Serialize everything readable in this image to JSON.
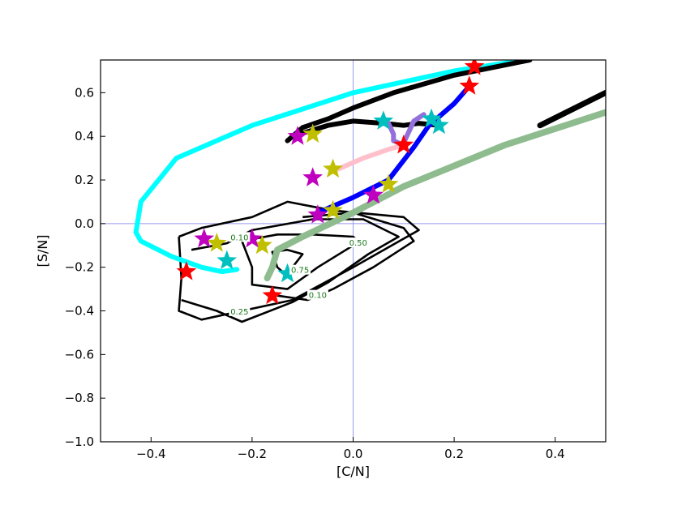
{
  "chart_data": {
    "type": "line",
    "xlabel": "[C/N]",
    "ylabel": "[S/N]",
    "xlim": [
      -0.5,
      0.5
    ],
    "ylim": [
      -1.0,
      0.75
    ],
    "x_ticks": [
      {
        "value": -0.4,
        "label": "−0.4"
      },
      {
        "value": -0.2,
        "label": "−0.2"
      },
      {
        "value": 0.0,
        "label": "0.0"
      },
      {
        "value": 0.2,
        "label": "0.2"
      },
      {
        "value": 0.4,
        "label": "0.4"
      }
    ],
    "y_ticks": [
      {
        "value": -1.0,
        "label": "−1.0"
      },
      {
        "value": -0.8,
        "label": "−0.8"
      },
      {
        "value": -0.6,
        "label": "−0.6"
      },
      {
        "value": -0.4,
        "label": "−0.4"
      },
      {
        "value": -0.2,
        "label": "−0.2"
      },
      {
        "value": 0.0,
        "label": "0.0"
      },
      {
        "value": 0.2,
        "label": "0.2"
      },
      {
        "value": 0.4,
        "label": "0.4"
      },
      {
        "value": 0.6,
        "label": "0.6"
      }
    ],
    "reference_lines": {
      "x": 0.0,
      "y": 0.0,
      "color": "#9999ee"
    },
    "contours": [
      {
        "label": "0.10",
        "label_at": [
          -0.225,
          -0.065
        ],
        "points": [
          [
            -0.345,
            -0.06
          ],
          [
            -0.3,
            -0.02
          ],
          [
            -0.2,
            0.03
          ],
          [
            -0.13,
            0.1
          ],
          [
            -0.04,
            0.06
          ],
          [
            0.1,
            0.03
          ],
          [
            0.13,
            -0.03
          ],
          [
            0.0,
            -0.2
          ],
          [
            -0.12,
            -0.35
          ],
          [
            -0.22,
            -0.4
          ],
          [
            -0.3,
            -0.44
          ],
          [
            -0.345,
            -0.4
          ],
          [
            -0.34,
            -0.25
          ],
          [
            -0.345,
            -0.06
          ]
        ]
      },
      {
        "label": "0.10",
        "label_at": [
          -0.07,
          -0.33
        ],
        "points": [
          [
            -0.15,
            -0.33
          ],
          [
            -0.09,
            -0.35
          ],
          [
            -0.04,
            -0.3
          ],
          [
            0.04,
            -0.2
          ],
          [
            0.12,
            -0.08
          ],
          [
            0.1,
            -0.02
          ],
          [
            0.0,
            0.05
          ],
          [
            -0.1,
            0.03
          ]
        ]
      },
      {
        "label": "0.25",
        "label_at": [
          -0.225,
          -0.405
        ],
        "points": [
          [
            -0.34,
            -0.35
          ],
          [
            -0.27,
            -0.4
          ],
          [
            -0.22,
            -0.45
          ],
          [
            -0.12,
            -0.36
          ],
          [
            -0.05,
            -0.27
          ],
          [
            0.03,
            -0.14
          ],
          [
            0.09,
            -0.06
          ],
          [
            0.02,
            0.02
          ],
          [
            -0.08,
            0.02
          ],
          [
            -0.2,
            -0.03
          ],
          [
            -0.25,
            -0.09
          ],
          [
            -0.32,
            -0.12
          ]
        ]
      },
      {
        "label": "0.50",
        "label_at": [
          0.01,
          -0.09
        ],
        "points": [
          [
            0.0,
            -0.1
          ],
          [
            -0.07,
            -0.2
          ],
          [
            -0.13,
            -0.3
          ],
          [
            -0.2,
            -0.28
          ],
          [
            -0.2,
            -0.2
          ],
          [
            -0.22,
            -0.08
          ],
          [
            -0.15,
            -0.05
          ],
          [
            -0.08,
            -0.05
          ],
          [
            0.0,
            -0.06
          ],
          [
            0.02,
            -0.1
          ]
        ]
      },
      {
        "label": "0.75",
        "label_at": [
          -0.105,
          -0.215
        ],
        "points": [
          [
            -0.13,
            -0.24
          ],
          [
            -0.15,
            -0.2
          ],
          [
            -0.16,
            -0.13
          ],
          [
            -0.13,
            -0.12
          ],
          [
            -0.1,
            -0.14
          ],
          [
            -0.12,
            -0.2
          ]
        ]
      }
    ],
    "series": [
      {
        "color": "#00ffff",
        "width": 6,
        "points": [
          [
            0.34,
            0.75
          ],
          [
            0.2,
            0.7
          ],
          [
            0.0,
            0.6
          ],
          [
            -0.2,
            0.45
          ],
          [
            -0.35,
            0.3
          ],
          [
            -0.42,
            0.1
          ],
          [
            -0.43,
            -0.04
          ],
          [
            -0.42,
            -0.08
          ],
          [
            -0.36,
            -0.15
          ],
          [
            -0.3,
            -0.2
          ],
          [
            -0.26,
            -0.22
          ],
          [
            -0.23,
            -0.21
          ]
        ]
      },
      {
        "color": "#000000",
        "width": 6,
        "points": [
          [
            0.35,
            0.75
          ],
          [
            0.2,
            0.68
          ],
          [
            0.08,
            0.6
          ],
          [
            0.0,
            0.53
          ],
          [
            -0.05,
            0.48
          ],
          [
            -0.1,
            0.44
          ],
          [
            -0.13,
            0.38
          ]
        ]
      },
      {
        "color": "#000000",
        "width": 6,
        "points": [
          [
            -0.12,
            0.4
          ],
          [
            -0.05,
            0.45
          ],
          [
            0.0,
            0.47
          ],
          [
            0.06,
            0.46
          ],
          [
            0.1,
            0.45
          ],
          [
            0.13,
            0.46
          ],
          [
            0.17,
            0.45
          ]
        ]
      },
      {
        "color": "#000000",
        "width": 7,
        "points": [
          [
            0.37,
            0.45
          ],
          [
            0.5,
            0.6
          ]
        ]
      },
      {
        "color": "#0000ff",
        "width": 6,
        "points": [
          [
            0.23,
            0.63
          ],
          [
            0.2,
            0.55
          ],
          [
            0.15,
            0.45
          ],
          [
            0.12,
            0.35
          ],
          [
            0.07,
            0.2
          ],
          [
            0.0,
            0.12
          ],
          [
            -0.07,
            0.05
          ]
        ]
      },
      {
        "color": "#9370db",
        "width": 6,
        "points": [
          [
            0.07,
            0.46
          ],
          [
            0.08,
            0.41
          ],
          [
            0.08,
            0.38
          ],
          [
            0.1,
            0.36
          ]
        ]
      },
      {
        "color": "#9370db",
        "width": 6,
        "points": [
          [
            0.1,
            0.37
          ],
          [
            0.12,
            0.47
          ],
          [
            0.14,
            0.5
          ]
        ]
      },
      {
        "color": "#ffc0cb",
        "width": 6,
        "points": [
          [
            -0.03,
            0.25
          ],
          [
            0.02,
            0.3
          ],
          [
            0.07,
            0.34
          ],
          [
            0.1,
            0.36
          ]
        ]
      },
      {
        "color": "#8fbc8f",
        "width": 8,
        "points": [
          [
            0.5,
            0.51
          ],
          [
            0.3,
            0.36
          ],
          [
            0.1,
            0.17
          ],
          [
            0.0,
            0.05
          ],
          [
            -0.1,
            -0.06
          ],
          [
            -0.15,
            -0.12
          ],
          [
            -0.16,
            -0.2
          ],
          [
            -0.17,
            -0.25
          ]
        ]
      }
    ],
    "markers": [
      {
        "x": 0.24,
        "y": 0.72,
        "color": "#ff0000"
      },
      {
        "x": 0.23,
        "y": 0.63,
        "color": "#ff0000"
      },
      {
        "x": 0.1,
        "y": 0.36,
        "color": "#ff0000"
      },
      {
        "x": -0.33,
        "y": -0.22,
        "color": "#ff0000"
      },
      {
        "x": -0.16,
        "y": -0.33,
        "color": "#ff0000"
      },
      {
        "x": 0.17,
        "y": 0.45,
        "color": "#00bfbf"
      },
      {
        "x": 0.06,
        "y": 0.47,
        "color": "#00bfbf"
      },
      {
        "x": 0.155,
        "y": 0.48,
        "color": "#00bfbf"
      },
      {
        "x": -0.25,
        "y": -0.17,
        "color": "#00bfbf"
      },
      {
        "x": -0.13,
        "y": -0.23,
        "color": "#00bfbf"
      },
      {
        "x": -0.08,
        "y": 0.41,
        "color": "#bfbf00"
      },
      {
        "x": -0.04,
        "y": 0.25,
        "color": "#bfbf00"
      },
      {
        "x": -0.04,
        "y": 0.06,
        "color": "#bfbf00"
      },
      {
        "x": 0.07,
        "y": 0.18,
        "color": "#bfbf00"
      },
      {
        "x": -0.27,
        "y": -0.09,
        "color": "#bfbf00"
      },
      {
        "x": -0.18,
        "y": -0.1,
        "color": "#bfbf00"
      },
      {
        "x": -0.11,
        "y": 0.4,
        "color": "#bf00bf"
      },
      {
        "x": -0.08,
        "y": 0.21,
        "color": "#bf00bf"
      },
      {
        "x": -0.07,
        "y": 0.04,
        "color": "#bf00bf"
      },
      {
        "x": 0.04,
        "y": 0.13,
        "color": "#bf00bf"
      },
      {
        "x": -0.295,
        "y": -0.07,
        "color": "#bf00bf"
      },
      {
        "x": -0.2,
        "y": -0.07,
        "color": "#bf00bf"
      }
    ]
  }
}
